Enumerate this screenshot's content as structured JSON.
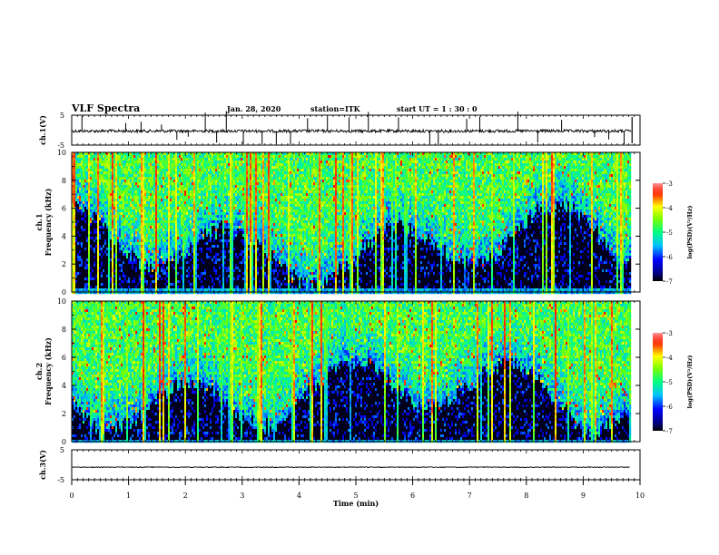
{
  "header": {
    "title": "VLF Spectra",
    "date": "Jan. 28, 2020",
    "station": "station=ITK",
    "start_ut": "start UT =   1 : 30 : 0"
  },
  "chart_data": [
    {
      "type": "line",
      "name": "ch1-waveform",
      "ylabel": "ch.1(V)",
      "ylim": [
        -5,
        5
      ],
      "yticks": [
        "5",
        "-5"
      ],
      "baseline": -0.3,
      "xlim": [
        0,
        10
      ],
      "spikes_min": [
        0.18,
        0.95,
        1.22,
        1.58,
        1.85,
        2.05,
        2.35,
        2.55,
        2.72,
        3.02,
        3.35,
        3.6,
        3.85,
        4.15,
        4.5,
        4.88,
        5.22,
        5.75,
        6.3,
        6.45,
        6.95,
        7.18,
        7.85,
        8.2,
        8.62,
        9.2,
        9.45,
        9.72
      ]
    },
    {
      "type": "heatmap",
      "name": "ch1-spectrogram",
      "ylabel": "ch.1",
      "ylabel2": "Frequency (kHz)",
      "xlim": [
        0,
        10
      ],
      "ylim": [
        0,
        10
      ],
      "yticks": [
        "0",
        "2",
        "4",
        "6",
        "8",
        "10"
      ],
      "data_end_min": 9.82,
      "colorbar": {
        "label": "log(PSD)(V²/Hz)",
        "range": [
          -7,
          -3
        ],
        "ticks": [
          "-3",
          "-4",
          "-5",
          "-6",
          "-7"
        ]
      }
    },
    {
      "type": "heatmap",
      "name": "ch2-spectrogram",
      "ylabel": "ch.2",
      "ylabel2": "Frequency (kHz)",
      "xlim": [
        0,
        10
      ],
      "ylim": [
        0,
        10
      ],
      "yticks": [
        "0",
        "2",
        "4",
        "6",
        "8",
        "10"
      ],
      "data_end_min": 9.82,
      "colorbar": {
        "label": "log(PSD)(V²/Hz)",
        "range": [
          -7,
          -3
        ],
        "ticks": [
          "-3",
          "-4",
          "-5",
          "-6",
          "-7"
        ]
      }
    },
    {
      "type": "line",
      "name": "ch3-waveform",
      "ylabel": "ch.3(V)",
      "ylim": [
        -5,
        5
      ],
      "yticks": [
        "5",
        "-5"
      ],
      "baseline": -0.8,
      "xlim": [
        0,
        10
      ],
      "xlabel": "Time (min)",
      "xticks": [
        "0",
        "1",
        "2",
        "3",
        "4",
        "5",
        "6",
        "7",
        "8",
        "9",
        "10"
      ]
    }
  ]
}
